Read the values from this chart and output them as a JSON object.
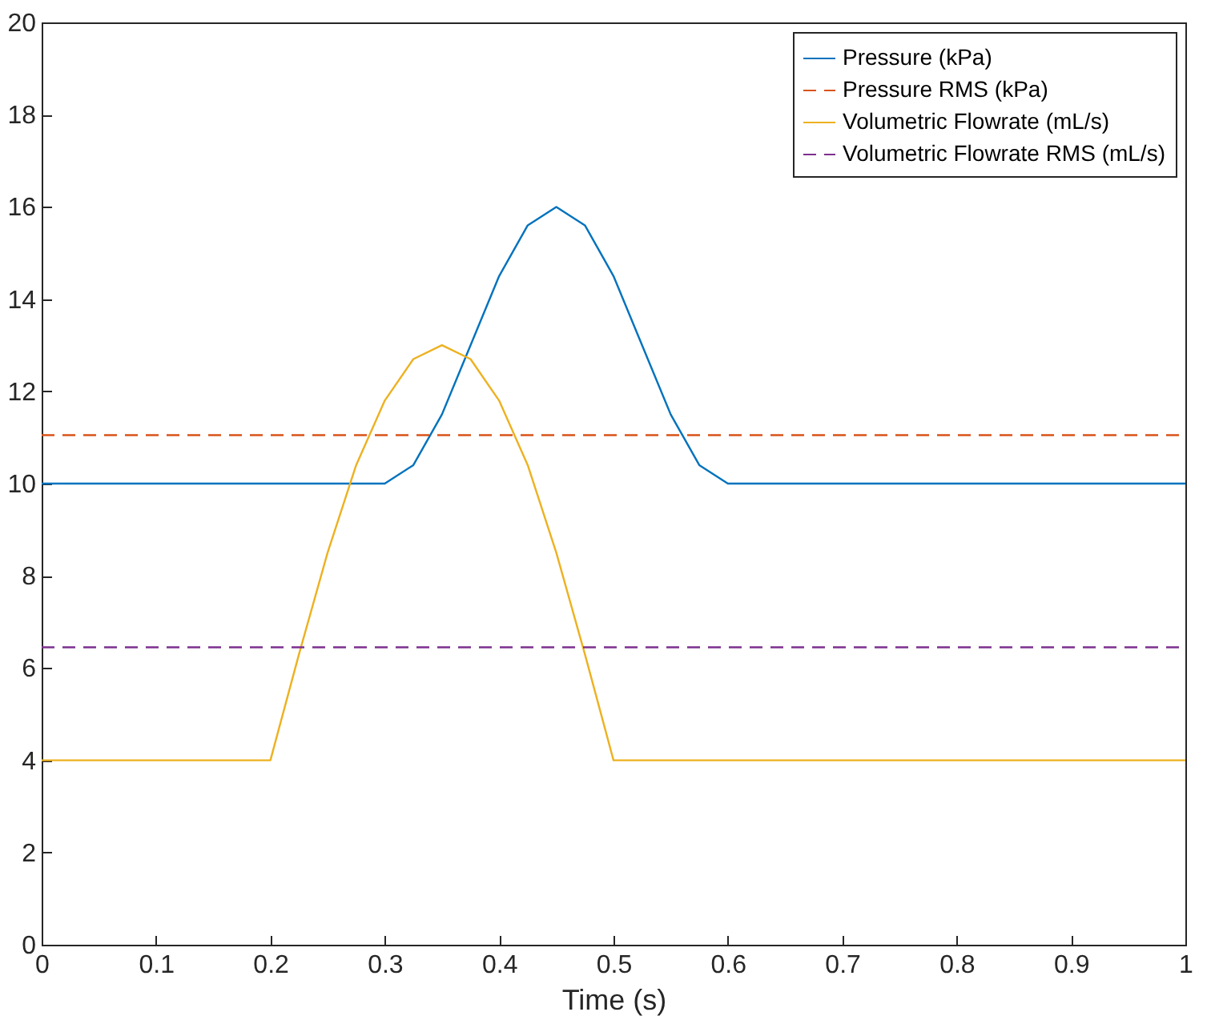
{
  "chart_data": {
    "type": "line",
    "xlabel": "Time (s)",
    "xlim": [
      0,
      1
    ],
    "xticks": [
      0,
      0.1,
      0.2,
      0.3,
      0.4,
      0.5,
      0.6,
      0.7,
      0.8,
      0.9,
      1
    ],
    "ylim": [
      0,
      20
    ],
    "yticks": [
      0,
      2,
      4,
      6,
      8,
      10,
      12,
      14,
      16,
      18,
      20
    ],
    "grid": false,
    "legend": "top right",
    "marker": "none",
    "series": [
      {
        "name": "Pressure (kPa)",
        "color": "#0072bd",
        "line_style": "solid",
        "x": [
          0,
          0.3,
          0.325,
          0.35,
          0.375,
          0.4,
          0.425,
          0.45,
          0.475,
          0.5,
          0.525,
          0.55,
          0.575,
          0.6,
          1
        ],
        "values": [
          10,
          10,
          10.4,
          11.5,
          13,
          14.5,
          15.6,
          16,
          15.6,
          14.5,
          13,
          11.5,
          10.4,
          10,
          10
        ]
      },
      {
        "name": "Pressure RMS (kPa)",
        "color": "#d95319",
        "line_style": "dashed",
        "x": [
          0,
          1
        ],
        "values": [
          11.05,
          11.05
        ]
      },
      {
        "name": "Volumetric Flowrate (mL/s)",
        "color": "#edb120",
        "line_style": "solid",
        "x": [
          0,
          0.2,
          0.225,
          0.25,
          0.275,
          0.3,
          0.325,
          0.35,
          0.375,
          0.4,
          0.425,
          0.45,
          0.475,
          0.5,
          1
        ],
        "values": [
          4,
          4,
          6.3,
          8.5,
          10.4,
          11.8,
          12.7,
          13,
          12.7,
          11.8,
          10.4,
          8.5,
          6.3,
          4,
          4
        ]
      },
      {
        "name": "Volumetric Flowrate RMS (mL/s)",
        "color": "#7e2f8e",
        "line_style": "dashed",
        "x": [
          0,
          1
        ],
        "values": [
          6.45,
          6.45
        ]
      }
    ]
  }
}
